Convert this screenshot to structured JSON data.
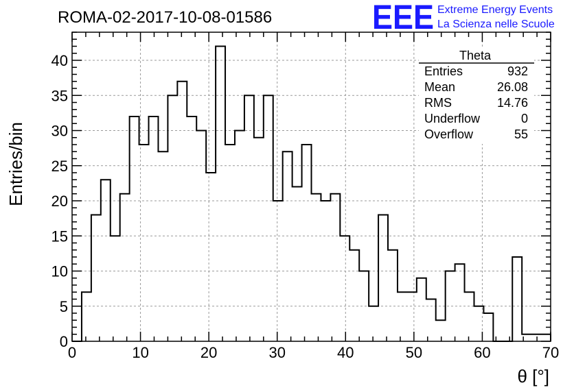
{
  "chart_data": {
    "type": "histogram",
    "title": "ROMA-02-2017-10-08-01586",
    "xlabel": "θ [°]",
    "ylabel": "Entries/bin",
    "xlim": [
      0,
      70
    ],
    "ylim": [
      0,
      44
    ],
    "bin_width": 1.4,
    "bin_edges_start": 0,
    "x_ticks": [
      0,
      10,
      20,
      30,
      40,
      50,
      60,
      70
    ],
    "y_ticks": [
      0,
      5,
      10,
      15,
      20,
      25,
      30,
      35,
      40
    ],
    "grid": true,
    "values": [
      0,
      7,
      18,
      23,
      15,
      21,
      32,
      28,
      32,
      27,
      35,
      37,
      32,
      30,
      24,
      42,
      28,
      30,
      35,
      29,
      35,
      20,
      27,
      22,
      28,
      21,
      20,
      21,
      15,
      13,
      10,
      5,
      18,
      13,
      7,
      7,
      9,
      6,
      3,
      10,
      11,
      7,
      5,
      4,
      0,
      0,
      12,
      1,
      1,
      1
    ],
    "stats_box": {
      "title": "Theta",
      "rows": [
        {
          "label": "Entries",
          "value": "932"
        },
        {
          "label": "Mean",
          "value": "26.08"
        },
        {
          "label": "RMS",
          "value": "14.76"
        },
        {
          "label": "Underflow",
          "value": "0"
        },
        {
          "label": "Overflow",
          "value": "55"
        }
      ]
    }
  },
  "logo": {
    "text": "EEE",
    "line1": "Extreme Energy Events",
    "line2": "La Scienza nelle Scuole",
    "color": "#1a1aff"
  }
}
